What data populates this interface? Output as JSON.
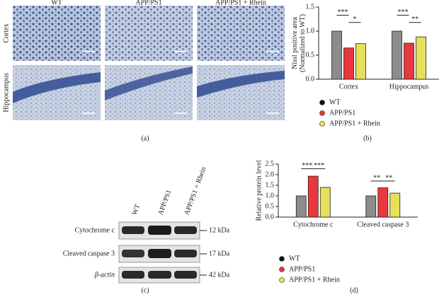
{
  "figure_a": {
    "column_labels": [
      "WT",
      "APP/PS1",
      "APP/PS1 + Rhein"
    ],
    "row_labels": [
      "Cortex",
      "Hippocampus"
    ],
    "caption": "(a)"
  },
  "figure_c": {
    "lane_labels": [
      "WT",
      "APP/PS1",
      "APP/PS1 + Rhein"
    ],
    "bands": [
      "Cytochrome c",
      "Cleaved caspase 3",
      "β-actin"
    ],
    "markers": [
      "12 kDa",
      "17 kDa",
      "42 kDa"
    ],
    "caption": "(c)"
  },
  "chart_data": [
    {
      "type": "bar",
      "y_label": [
        "Nissl positive area",
        "(Normalized to WT)"
      ],
      "categories": [
        "Cortex",
        "Hippocampus"
      ],
      "series": [
        {
          "name": "WT",
          "color": "#8c8c8c",
          "values": [
            1.0,
            1.0
          ]
        },
        {
          "name": "APP/PS1",
          "color": "#e8383d",
          "values": [
            0.65,
            0.75
          ]
        },
        {
          "name": "APP/PS1 + Rhein",
          "color": "#e6e05a",
          "values": [
            0.74,
            0.88
          ]
        }
      ],
      "ylim": [
        0,
        1.5
      ],
      "yticks": [
        {
          "value": 0,
          "label": "0.0"
        },
        {
          "value": 0.5,
          "label": "0.5"
        },
        {
          "value": 1,
          "label": "1.0"
        },
        {
          "value": 1.5,
          "label": "1.5"
        }
      ],
      "annotations": [
        "***",
        "*",
        "***",
        "**"
      ],
      "caption": "(b)"
    },
    {
      "type": "bar",
      "y_label": [
        "Relative protein level"
      ],
      "categories": [
        "Cytochrome c",
        "Cleaved caspase 3"
      ],
      "series": [
        {
          "name": "WT",
          "color": "#8c8c8c",
          "values": [
            1.0,
            1.0
          ]
        },
        {
          "name": "APP/PS1",
          "color": "#e8383d",
          "values": [
            1.93,
            1.38
          ]
        },
        {
          "name": "APP/PS1 + Rhein",
          "color": "#e6e05a",
          "values": [
            1.4,
            1.13
          ]
        }
      ],
      "ylim": [
        0,
        2.5
      ],
      "yticks": [
        {
          "value": 0,
          "label": "0.0"
        },
        {
          "value": 0.5,
          "label": "0.5"
        },
        {
          "value": 1,
          "label": "1.0"
        },
        {
          "value": 1.5,
          "label": "1.5"
        },
        {
          "value": 2,
          "label": "2.0"
        },
        {
          "value": 2.5,
          "label": "2.5"
        }
      ],
      "annotations": [
        "***",
        "***",
        "**",
        "**"
      ],
      "caption": "(d)"
    }
  ]
}
